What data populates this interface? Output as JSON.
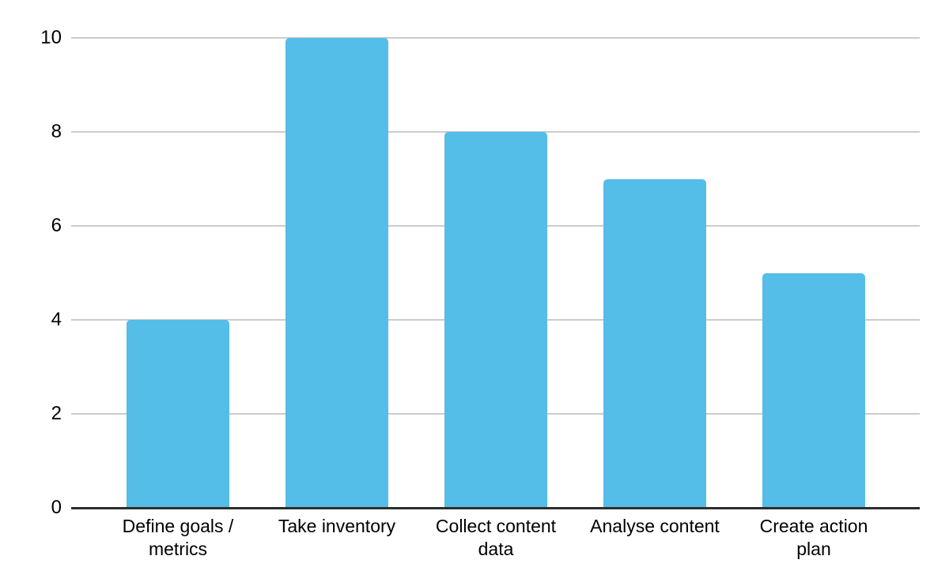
{
  "chart_data": {
    "type": "bar",
    "title": "",
    "xlabel": "",
    "ylabel": "",
    "categories": [
      "Define goals / metrics",
      "Take inventory",
      "Collect content data",
      "Analyse content",
      "Create action plan"
    ],
    "values": [
      4,
      10,
      8,
      7,
      5
    ],
    "ylim": [
      0,
      10
    ],
    "yticks": [
      0,
      2,
      4,
      6,
      8,
      10
    ],
    "grid": true,
    "legend": false,
    "colors": {
      "bar": "#54BDE8",
      "gridline": "#cccccc",
      "axis": "#2d2d2d",
      "text": "#000000",
      "background": "#ffffff"
    }
  }
}
